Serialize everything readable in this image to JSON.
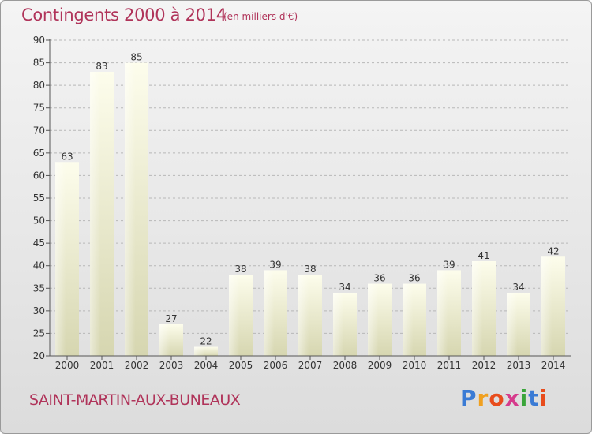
{
  "header": {
    "title": "Contingents 2000 à 2014",
    "subtitle": "(en milliers d'€)"
  },
  "footer": {
    "place": "SAINT-MARTIN-AUX-BUNEAUX",
    "logo": "Proxiti",
    "logo_colors": [
      "#3a7bd5",
      "#f0a020",
      "#e84c1c",
      "#d63b8c",
      "#3aa53a",
      "#3a7bd5",
      "#e84c1c"
    ]
  },
  "colors": {
    "title": "#b0345a",
    "bar_light": "#fbfbe6",
    "bar_dark": "#d8d8b4",
    "grid": "#b8b8b8",
    "axis": "#555555"
  },
  "chart_data": {
    "type": "bar",
    "categories": [
      "2000",
      "2001",
      "2002",
      "2003",
      "2004",
      "2005",
      "2006",
      "2007",
      "2008",
      "2009",
      "2010",
      "2011",
      "2012",
      "2013",
      "2014"
    ],
    "values": [
      63,
      83,
      85,
      27,
      22,
      38,
      39,
      38,
      34,
      36,
      36,
      39,
      41,
      34,
      42
    ],
    "title": "Contingents 2000 à 2014",
    "subtitle": "(en milliers d'€)",
    "ylim": [
      20,
      90
    ],
    "yticks": [
      20,
      25,
      30,
      35,
      40,
      45,
      50,
      55,
      60,
      65,
      70,
      75,
      80,
      85,
      90
    ],
    "grid": true,
    "data_labels": true
  }
}
